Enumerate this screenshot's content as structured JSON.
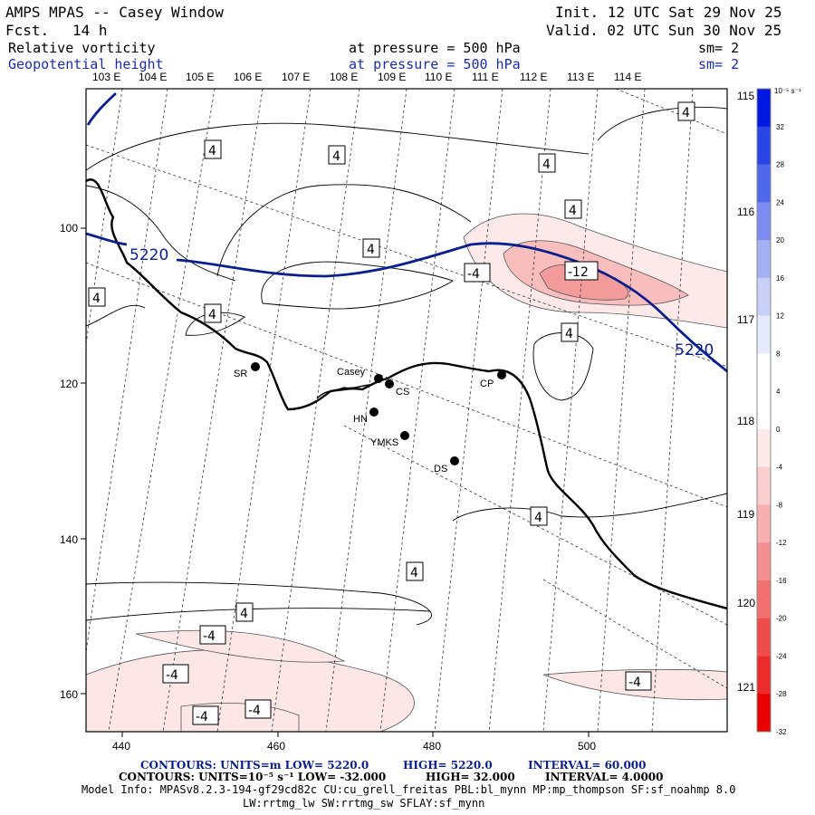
{
  "header": {
    "title": "AMPS MPAS -- Casey Window",
    "forecast_label": "Fcst.",
    "forecast_value": "14 h",
    "init": "Init. 12 UTC Sat 29 Nov 25",
    "valid": "Valid. 02 UTC Sun 30 Nov 25"
  },
  "fields": [
    {
      "name": "Relative vorticity",
      "pressure": "at pressure =  500 hPa",
      "smooth": "sm= 2",
      "color": "#000000"
    },
    {
      "name": "Geopotential height",
      "pressure": "at pressure =  500 hPa",
      "smooth": "sm= 2",
      "color": "#1a2da8"
    }
  ],
  "top_lon_labels": [
    "103 E",
    "104 E",
    "105 E",
    "106 E",
    "107 E",
    "108 E",
    "109 E",
    "110 E",
    "111 E",
    "112 E",
    "113 E",
    "114 E"
  ],
  "right_lon_labels": [
    "115 E",
    "116 E",
    "117 E",
    "118 E",
    "119 E",
    "120 E",
    "121 E"
  ],
  "x_ticks": [
    "440",
    "460",
    "480",
    "500"
  ],
  "y_ticks": [
    "100",
    "120",
    "140",
    "160"
  ],
  "height_contour_label": "5220",
  "vorticity_labels": {
    "positive": "4",
    "negative": "-4",
    "min": "-12"
  },
  "stations": [
    "SR",
    "Casey",
    "CS",
    "HN",
    "YMKS",
    "CP",
    "DS"
  ],
  "colorbar": {
    "unit": "10⁻⁵ s⁻¹",
    "ticks": [
      "32",
      "28",
      "24",
      "20",
      "16",
      "12",
      "8",
      "4",
      "0",
      "-4",
      "-8",
      "-12",
      "-16",
      "-20",
      "-24",
      "-28",
      "-32"
    ],
    "colors": [
      "#0018e0",
      "#2a45e6",
      "#5068ea",
      "#7a8cef",
      "#a4b0f3",
      "#c9d0f8",
      "#e6e9fc",
      "#ffffff",
      "#ffffff",
      "#fdeaea",
      "#fbcfcf",
      "#f8b0b0",
      "#f59090",
      "#f27070",
      "#ef4c4c",
      "#ec2a2a",
      "#e80000"
    ]
  },
  "footer": {
    "line1_contours": "CONTOURS:  UNITS=m  LOW=  5220.0",
    "line1_high": "HIGH=  5220.0",
    "line1_interval": "INTERVAL=  60.000",
    "line2_contours": "CONTOURS:  UNITS=10⁻⁵ s⁻¹  LOW= -32.000",
    "line2_high": "HIGH=  32.000",
    "line2_interval": "INTERVAL=   4.0000",
    "model_info": "Model Info: MPASv8.2.3-194-gf29cd82c CU:cu_grell_freitas PBL:bl_mynn MP:mp_thompson SF:sf_noahmp 8.0",
    "model_info2": "LW:rrtmg_lw SW:rrtmg_sw SFLAY:sf_mynn"
  }
}
